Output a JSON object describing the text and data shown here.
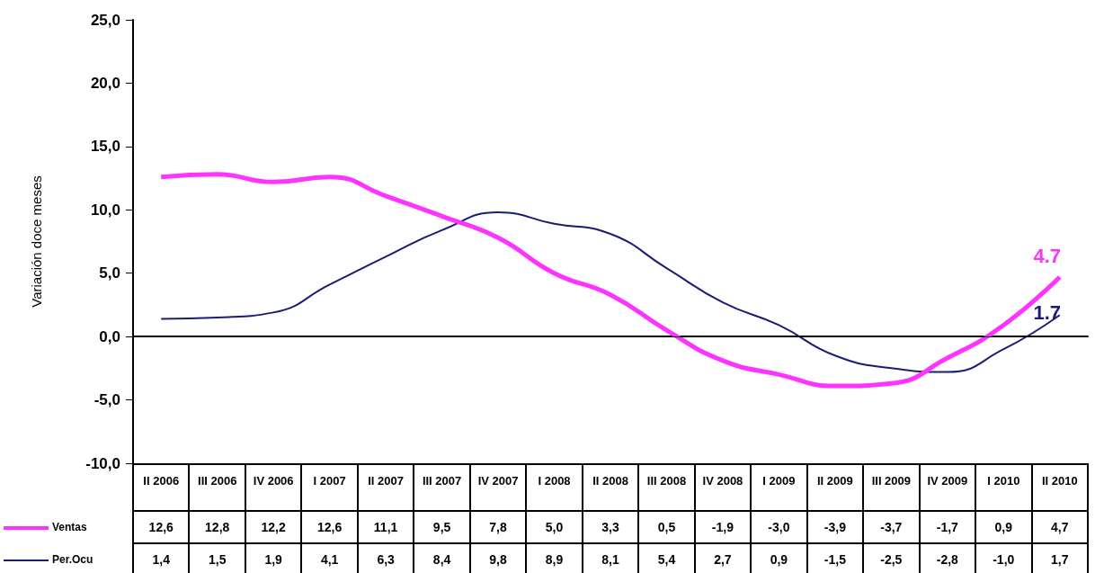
{
  "chart_data": {
    "type": "line",
    "ylabel": "Variación doce meses",
    "categories": [
      "II 2006",
      "III 2006",
      "IV 2006",
      "I 2007",
      "II 2007",
      "III 2007",
      "IV 2007",
      "I 2008",
      "II 2008",
      "III 2008",
      "IV 2008",
      "I 2009",
      "II 2009",
      "III 2009",
      "IV 2009",
      "I 2010",
      "II 2010"
    ],
    "series": [
      {
        "name": "Ventas",
        "color": "#ff33ff",
        "values": [
          12.6,
          12.8,
          12.2,
          12.6,
          11.1,
          9.5,
          7.8,
          5.0,
          3.3,
          0.5,
          -1.9,
          -3.0,
          -3.9,
          -3.7,
          -1.7,
          0.9,
          4.7
        ],
        "value_labels": [
          "12,6",
          "12,8",
          "12,2",
          "12,6",
          "11,1",
          "9,5",
          "7,8",
          "5,0",
          "3,3",
          "0,5",
          "-1,9",
          "-3,0",
          "-3,9",
          "-3,7",
          "-1,7",
          "0,9",
          "4,7"
        ]
      },
      {
        "name": "Per.Ocu",
        "color": "#1c1c78",
        "values": [
          1.4,
          1.5,
          1.9,
          4.1,
          6.3,
          8.4,
          9.8,
          8.9,
          8.1,
          5.4,
          2.7,
          0.9,
          -1.5,
          -2.5,
          -2.8,
          -1.0,
          1.7
        ],
        "value_labels": [
          "1,4",
          "1,5",
          "1,9",
          "4,1",
          "6,3",
          "8,4",
          "9,8",
          "8,9",
          "8,1",
          "5,4",
          "2,7",
          "0,9",
          "-1,5",
          "-2,5",
          "-2,8",
          "-1,0",
          "1,7"
        ]
      }
    ],
    "ylim": [
      -10,
      25
    ],
    "yticks": [
      {
        "value": -10,
        "label": "-10,0"
      },
      {
        "value": -5,
        "label": "-5,0"
      },
      {
        "value": 0,
        "label": "0,0"
      },
      {
        "value": 5,
        "label": "5,0"
      },
      {
        "value": 10,
        "label": "10,0"
      },
      {
        "value": 15,
        "label": "15,0"
      },
      {
        "value": 20,
        "label": "20,0"
      },
      {
        "value": 25,
        "label": "25,0"
      }
    ],
    "ref_lines": [
      {
        "axis": "y",
        "value": 0,
        "color": "#000000"
      }
    ],
    "annotations": [
      {
        "text": "4.7",
        "x": "II 2010",
        "y": 4.7
      },
      {
        "text": "1.7",
        "x": "II 2010",
        "y": 1.7
      }
    ],
    "grid": false,
    "legend": "bottom left",
    "marker": "none",
    "line_style": "solid"
  }
}
